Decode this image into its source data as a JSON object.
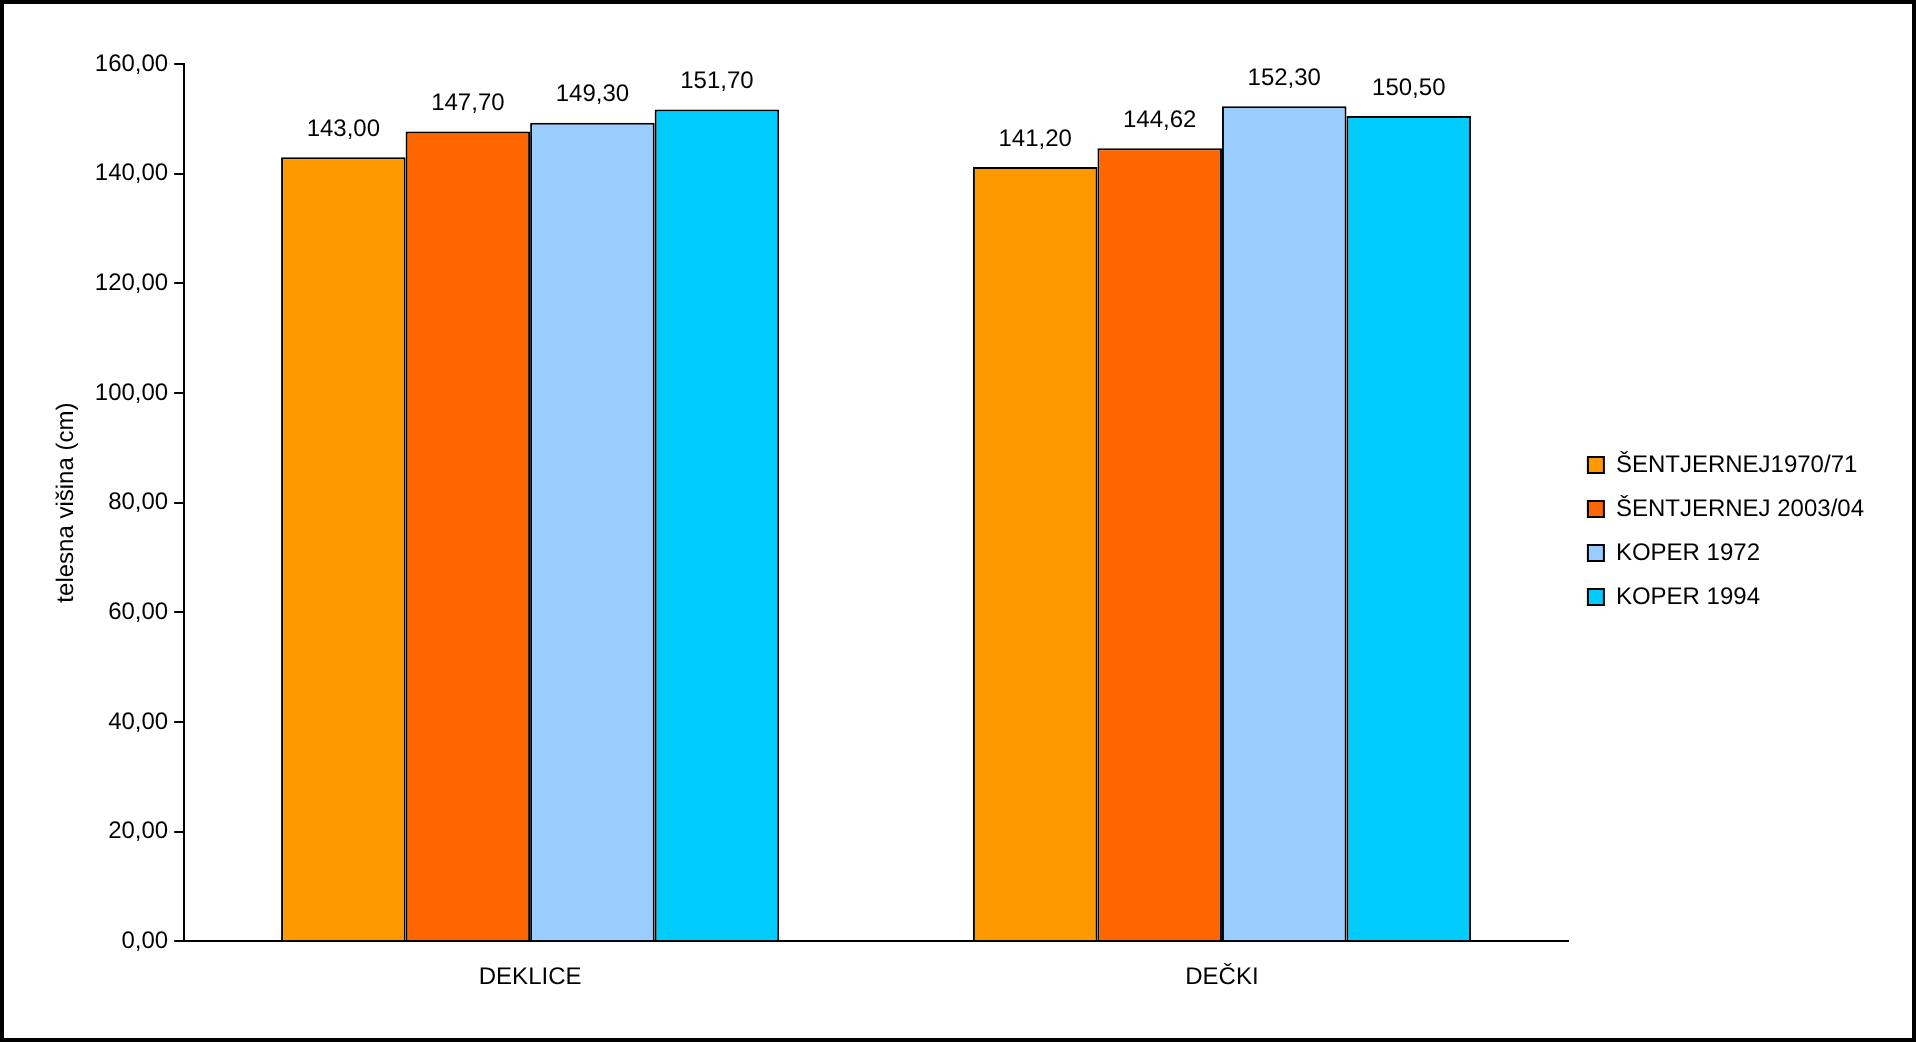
{
  "chart_data": {
    "type": "bar",
    "ylabel": "telesna višina (cm)",
    "categories": [
      "DEKLICE",
      "DEČKI"
    ],
    "series": [
      {
        "name": "ŠENTJERNEJ1970/71",
        "color": "#ff9900",
        "values": [
          143.0,
          141.2
        ],
        "value_labels": [
          "143,00",
          "141,20"
        ]
      },
      {
        "name": "ŠENTJERNEJ 2003/04",
        "color": "#ff6600",
        "values": [
          147.7,
          144.62
        ],
        "value_labels": [
          "147,70",
          "144,62"
        ]
      },
      {
        "name": "KOPER 1972",
        "color": "#99ccff",
        "values": [
          149.3,
          152.3
        ],
        "value_labels": [
          "149,30",
          "152,30"
        ]
      },
      {
        "name": "KOPER 1994",
        "color": "#00ccff",
        "values": [
          151.7,
          150.5
        ],
        "value_labels": [
          "151,70",
          "150,50"
        ]
      }
    ],
    "ylim": [
      0,
      160
    ],
    "yticks": [
      {
        "value": 0,
        "label": "0,00"
      },
      {
        "value": 20,
        "label": "20,00"
      },
      {
        "value": 40,
        "label": "40,00"
      },
      {
        "value": 60,
        "label": "60,00"
      },
      {
        "value": 80,
        "label": "80,00"
      },
      {
        "value": 100,
        "label": "100,00"
      },
      {
        "value": 120,
        "label": "120,00"
      },
      {
        "value": 140,
        "label": "140,00"
      },
      {
        "value": 160,
        "label": "160,00"
      }
    ],
    "grid": false,
    "legend": "right"
  }
}
